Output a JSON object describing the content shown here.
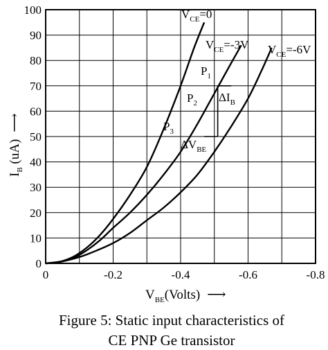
{
  "chart_data": {
    "type": "line",
    "title": "",
    "x_axis": {
      "label_main": "V",
      "label_sub": "BE",
      "label_rest": "(Volts)",
      "arrow": "⟶",
      "range": [
        0,
        -0.8
      ],
      "ticks": [
        {
          "value": 0,
          "label": "0"
        },
        {
          "value": -0.2,
          "label": "-0.2"
        },
        {
          "value": -0.4,
          "label": "-0.4"
        },
        {
          "value": -0.6,
          "label": "-0.6"
        },
        {
          "value": -0.8,
          "label": "-0.8"
        }
      ]
    },
    "y_axis": {
      "label_main": "I",
      "label_sub": "B",
      "label_rest": " (uA)",
      "arrow": "⟶",
      "range": [
        0,
        100
      ],
      "ticks": [
        {
          "value": 0,
          "label": "0"
        },
        {
          "value": 10,
          "label": "10"
        },
        {
          "value": 20,
          "label": "20"
        },
        {
          "value": 30,
          "label": "30"
        },
        {
          "value": 40,
          "label": "40"
        },
        {
          "value": 50,
          "label": "50"
        },
        {
          "value": 60,
          "label": "60"
        },
        {
          "value": 70,
          "label": "70"
        },
        {
          "value": 80,
          "label": "80"
        },
        {
          "value": 90,
          "label": "90"
        },
        {
          "value": 100,
          "label": "100"
        }
      ]
    },
    "grid": true,
    "series": [
      {
        "label_main": "V",
        "label_sub": "CE",
        "label_rest": "=0",
        "points": [
          [
            0,
            0
          ],
          [
            -0.04,
            0.6
          ],
          [
            -0.08,
            2.5
          ],
          [
            -0.12,
            6
          ],
          [
            -0.16,
            11
          ],
          [
            -0.2,
            17.5
          ],
          [
            -0.25,
            27
          ],
          [
            -0.3,
            38
          ],
          [
            -0.35,
            53
          ],
          [
            -0.4,
            70
          ],
          [
            -0.44,
            85
          ],
          [
            -0.47,
            95
          ]
        ]
      },
      {
        "label_main": "V",
        "label_sub": "CE",
        "label_rest": "=-3V",
        "points": [
          [
            0,
            0
          ],
          [
            -0.04,
            0.5
          ],
          [
            -0.08,
            2
          ],
          [
            -0.12,
            5
          ],
          [
            -0.16,
            9
          ],
          [
            -0.2,
            14
          ],
          [
            -0.25,
            20
          ],
          [
            -0.3,
            27
          ],
          [
            -0.35,
            35
          ],
          [
            -0.4,
            44
          ],
          [
            -0.45,
            55
          ],
          [
            -0.5,
            67
          ],
          [
            -0.55,
            79
          ],
          [
            -0.58,
            86
          ]
        ]
      },
      {
        "label_main": "V",
        "label_sub": "CE",
        "label_rest": "=-6V",
        "points": [
          [
            0,
            0
          ],
          [
            -0.05,
            0.8
          ],
          [
            -0.1,
            2.5
          ],
          [
            -0.15,
            5
          ],
          [
            -0.2,
            8
          ],
          [
            -0.25,
            12
          ],
          [
            -0.3,
            17
          ],
          [
            -0.35,
            22
          ],
          [
            -0.4,
            28
          ],
          [
            -0.45,
            35
          ],
          [
            -0.5,
            44
          ],
          [
            -0.55,
            54
          ],
          [
            -0.6,
            65
          ],
          [
            -0.64,
            76
          ],
          [
            -0.67,
            85
          ]
        ]
      }
    ],
    "annotations": {
      "p1": {
        "main": "P",
        "sub": "1"
      },
      "p2": {
        "main": "P",
        "sub": "2"
      },
      "p3": {
        "main": "P",
        "sub": "3"
      },
      "delta_ib": {
        "main": "ΔI",
        "sub": "B"
      },
      "delta_vbe": {
        "main": "ΔV",
        "sub": "BE"
      }
    },
    "construction": {
      "vertical": {
        "x": -0.51,
        "y_from": 50,
        "y_to": 70
      },
      "horizontal_top": {
        "x_from": -0.51,
        "x_to": -0.55,
        "y": 70
      },
      "horizontal_bottom": {
        "x_from": -0.47,
        "x_to": -0.51,
        "y": 50
      }
    }
  },
  "caption": {
    "line1": "Figure 5: Static input characteristics of",
    "line2": "CE PNP Ge transistor"
  }
}
